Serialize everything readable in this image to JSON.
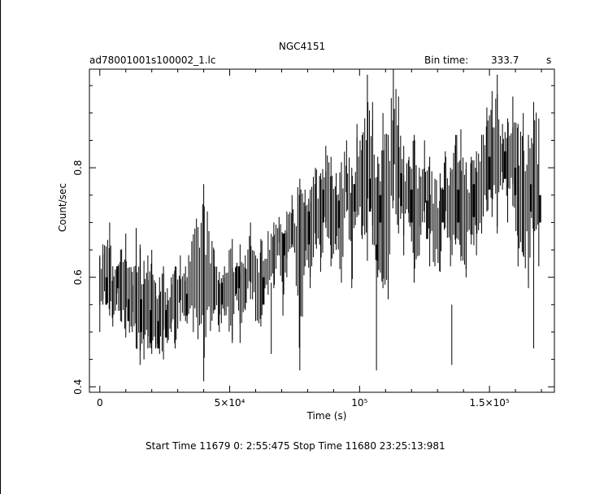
{
  "header": {
    "title": "NGC4151",
    "filename": "ad78001001s100002_1.lc",
    "bin_time_label": "Bin time:",
    "bin_time_value": "333.7",
    "bin_time_unit": "s"
  },
  "footer": {
    "time_range": "Start Time 11679  0: 2:55:475    Stop Time 11680 23:25:13:981"
  },
  "chart_data": {
    "type": "line",
    "title": "NGC4151",
    "xlabel": "Time (s)",
    "ylabel": "Count/sec",
    "xlim": [
      -4000,
      175000
    ],
    "ylim": [
      0.39,
      0.98
    ],
    "x_ticks": [
      0,
      50000,
      100000,
      150000
    ],
    "x_tick_labels": [
      "0",
      "5×10⁴",
      "10⁵",
      "1.5×10⁵"
    ],
    "y_ticks": [
      0.4,
      0.6,
      0.8
    ],
    "y_tick_labels": [
      "0.4",
      "0.6",
      "0.8"
    ],
    "grid": false,
    "series": [
      {
        "style": "vertical-spikes",
        "color": "#000000",
        "x": [
          0,
          1200,
          3800,
          5000,
          6500,
          8000,
          10000,
          12500,
          14000,
          15500,
          17000,
          18500,
          20000,
          21500,
          23000,
          24500,
          26000,
          27500,
          29000,
          31000,
          33000,
          40000,
          44000,
          46000,
          48000,
          51000,
          52500,
          54000,
          56000,
          58000,
          60000,
          62000,
          67000,
          69000,
          70500,
          72000,
          74000,
          77000,
          79000,
          81000,
          83000,
          85000,
          87000,
          89000,
          91000,
          93000,
          95000,
          97000,
          99000,
          101000,
          103000,
          105000,
          107000,
          109000,
          111000,
          113000,
          115000,
          117000,
          119000,
          121000,
          123000,
          125000,
          127000,
          129000,
          131000,
          133000,
          135000,
          137000,
          139000,
          141000,
          143000,
          145000,
          147000,
          149000,
          151000,
          153000,
          155000,
          157000,
          159000,
          161000,
          163000,
          165000,
          167000,
          169000
        ],
        "y_low": [
          0.5,
          0.55,
          0.53,
          0.51,
          0.55,
          0.52,
          0.49,
          0.5,
          0.47,
          0.44,
          0.45,
          0.47,
          0.46,
          0.47,
          0.46,
          0.45,
          0.48,
          0.5,
          0.47,
          0.52,
          0.52,
          0.41,
          0.54,
          0.5,
          0.53,
          0.48,
          0.57,
          0.48,
          0.54,
          0.56,
          0.52,
          0.51,
          0.58,
          0.64,
          0.53,
          0.6,
          0.66,
          0.43,
          0.62,
          0.58,
          0.66,
          0.61,
          0.69,
          0.62,
          0.65,
          0.59,
          0.72,
          0.58,
          0.71,
          0.67,
          0.63,
          0.66,
          0.6,
          0.58,
          0.56,
          0.74,
          0.68,
          0.64,
          0.7,
          0.59,
          0.64,
          0.7,
          0.62,
          0.62,
          0.61,
          0.69,
          0.62,
          0.66,
          0.63,
          0.6,
          0.66,
          0.64,
          0.68,
          0.72,
          0.71,
          0.68,
          0.76,
          0.7,
          0.73,
          0.62,
          0.64,
          0.58,
          0.68,
          0.62
        ],
        "y_high": [
          0.64,
          0.66,
          0.7,
          0.62,
          0.62,
          0.65,
          0.68,
          0.61,
          0.69,
          0.66,
          0.63,
          0.64,
          0.65,
          0.59,
          0.6,
          0.62,
          0.58,
          0.6,
          0.62,
          0.64,
          0.62,
          0.77,
          0.65,
          0.61,
          0.62,
          0.67,
          0.62,
          0.66,
          0.64,
          0.7,
          0.64,
          0.67,
          0.7,
          0.71,
          0.68,
          0.72,
          0.75,
          0.78,
          0.76,
          0.76,
          0.8,
          0.79,
          0.84,
          0.82,
          0.79,
          0.81,
          0.85,
          0.8,
          0.88,
          0.86,
          0.97,
          0.92,
          0.82,
          0.9,
          0.86,
          0.98,
          0.93,
          0.84,
          0.82,
          0.86,
          0.8,
          0.85,
          0.82,
          0.78,
          0.79,
          0.83,
          0.8,
          0.86,
          0.87,
          0.81,
          0.82,
          0.83,
          0.86,
          0.91,
          0.94,
          0.97,
          0.88,
          0.89,
          0.93,
          0.88,
          0.9,
          0.86,
          0.92,
          0.89
        ]
      },
      {
        "style": "thick-segments",
        "color": "#000000",
        "x": [
          2500,
          7000,
          11000,
          16000,
          19500,
          22500,
          25500,
          33500,
          47000,
          53500,
          63000,
          71000,
          80500,
          86000,
          92000,
          98000,
          104000,
          108000,
          116000,
          120000,
          126000,
          132000,
          138000,
          144000,
          150000,
          156000,
          160000,
          166000,
          169500
        ],
        "y_low": [
          0.55,
          0.58,
          0.52,
          0.5,
          0.48,
          0.47,
          0.49,
          0.53,
          0.55,
          0.58,
          0.55,
          0.64,
          0.66,
          0.7,
          0.69,
          0.72,
          0.72,
          0.7,
          0.73,
          0.7,
          0.67,
          0.7,
          0.7,
          0.71,
          0.76,
          0.78,
          0.75,
          0.72,
          0.7
        ],
        "y_high": [
          0.6,
          0.62,
          0.56,
          0.56,
          0.54,
          0.52,
          0.54,
          0.57,
          0.59,
          0.62,
          0.6,
          0.68,
          0.72,
          0.76,
          0.74,
          0.77,
          0.78,
          0.75,
          0.79,
          0.76,
          0.74,
          0.76,
          0.76,
          0.77,
          0.82,
          0.83,
          0.8,
          0.77,
          0.75
        ]
      }
    ],
    "outliers": [
      {
        "x": 66000,
        "y_low": 0.46,
        "y_high": 0.59
      },
      {
        "x": 106500,
        "y_low": 0.43,
        "y_high": 0.66
      },
      {
        "x": 135500,
        "y_low": 0.44,
        "y_high": 0.55
      },
      {
        "x": 167000,
        "y_low": 0.47,
        "y_high": 0.7
      }
    ]
  }
}
